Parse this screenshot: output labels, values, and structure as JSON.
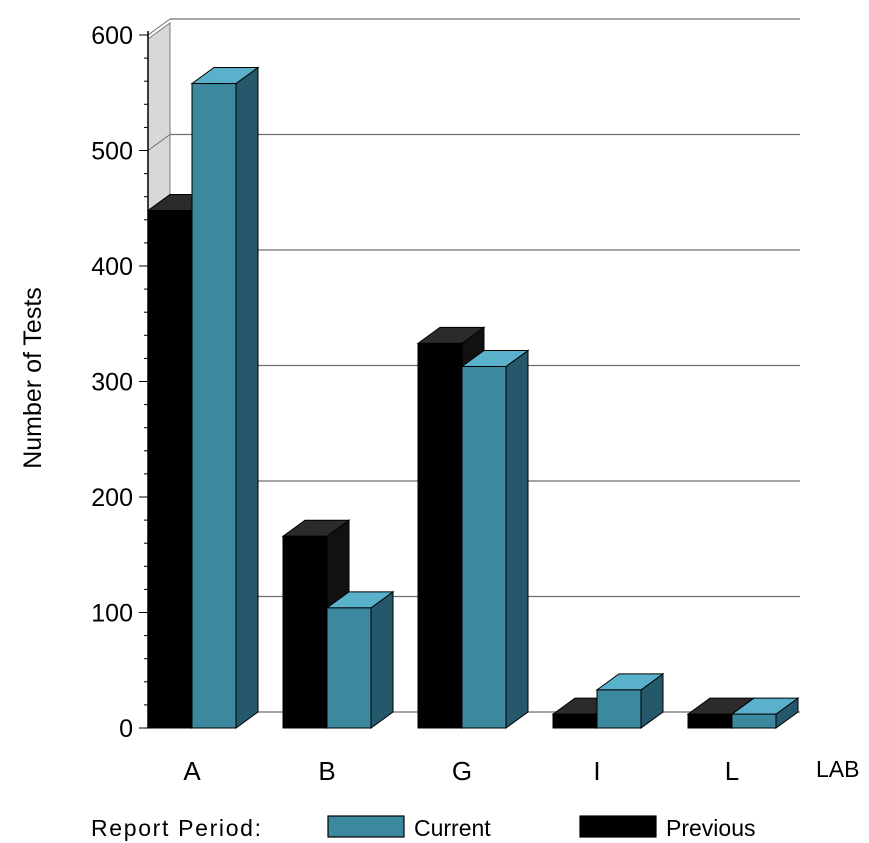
{
  "chart_data": {
    "type": "bar",
    "title": "",
    "xlabel": "LAB",
    "ylabel": "Number of Tests",
    "categories": [
      "A",
      "B",
      "G",
      "I",
      "L"
    ],
    "ylim": [
      0,
      600
    ],
    "yticks": [
      0,
      100,
      200,
      300,
      400,
      500,
      600
    ],
    "grid": true,
    "legend": {
      "title": "Report Period:",
      "position": "bottom",
      "entries": [
        "Current",
        "Previous"
      ]
    },
    "series": [
      {
        "name": "Previous",
        "values": [
          448,
          166,
          333,
          12,
          12
        ]
      },
      {
        "name": "Current",
        "values": [
          558,
          104,
          313,
          33,
          12
        ]
      }
    ],
    "colors": {
      "Previous": "#000000",
      "Previous_top": "#2b2b2b",
      "Previous_side": "#111111",
      "Current": "#3c899f",
      "Current_top": "#5ab1cc",
      "Current_side": "#24586a",
      "grid": "#6f6f6f",
      "wall": "#d8d8d8"
    }
  }
}
